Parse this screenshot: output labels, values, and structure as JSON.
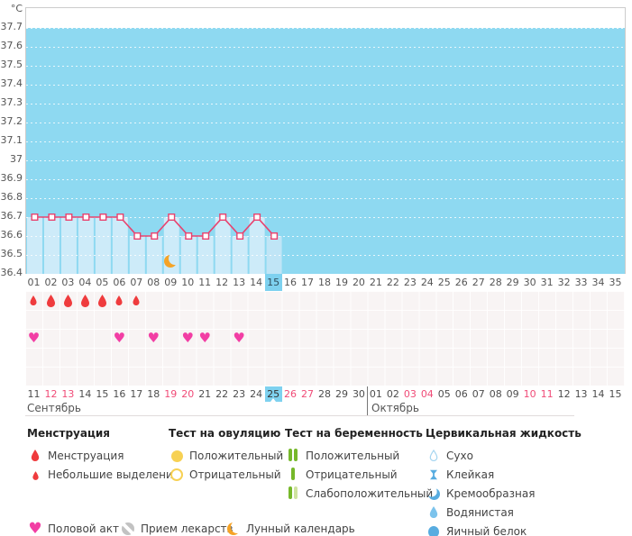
{
  "chart_data": {
    "type": "line",
    "ylabel": "°C",
    "ylim": [
      36.4,
      37.8
    ],
    "yticks": [
      "37.7",
      "37.6",
      "37.5",
      "37.4",
      "37.3",
      "37.2",
      "37.1",
      "37",
      "36.9",
      "36.8",
      "36.7",
      "36.6",
      "36.5",
      "36.4"
    ],
    "x_categories": [
      "01",
      "02",
      "03",
      "04",
      "05",
      "06",
      "07",
      "08",
      "09",
      "10",
      "11",
      "12",
      "13",
      "14",
      "15",
      "16",
      "17",
      "18",
      "19",
      "20",
      "21",
      "22",
      "23",
      "24",
      "25",
      "26",
      "27",
      "28",
      "29",
      "30",
      "31",
      "32",
      "33",
      "34",
      "35"
    ],
    "series": [
      {
        "name": "temperature",
        "values": [
          36.7,
          36.7,
          36.7,
          36.7,
          36.7,
          36.7,
          36.6,
          36.6,
          36.7,
          36.6,
          36.6,
          36.7,
          36.6,
          36.7,
          36.6,
          null,
          null,
          null,
          null,
          null,
          null,
          null,
          null,
          null,
          null,
          null,
          null,
          null,
          null,
          null,
          null,
          null,
          null,
          null,
          null
        ]
      }
    ],
    "selected_day": "15",
    "moon_day": "09",
    "grid": "white-dotted",
    "legend_position": "bottom"
  },
  "symptom_rows": {
    "menstruation": [
      {
        "day": "01",
        "size": "small"
      },
      {
        "day": "02",
        "size": "large"
      },
      {
        "day": "03",
        "size": "large"
      },
      {
        "day": "04",
        "size": "large"
      },
      {
        "day": "05",
        "size": "large"
      },
      {
        "day": "06",
        "size": "small"
      },
      {
        "day": "07",
        "size": "small"
      }
    ],
    "intercourse_days": [
      "01",
      "06",
      "08",
      "10",
      "11",
      "13"
    ]
  },
  "calendar": {
    "selected_date": "25",
    "months": [
      {
        "name": "Сентябрь",
        "days": [
          "11",
          "12",
          "13",
          "14",
          "15",
          "16",
          "17",
          "18",
          "19",
          "20",
          "21",
          "22",
          "23",
          "24",
          "25",
          "26",
          "27",
          "28",
          "29",
          "30"
        ],
        "weekend_days": [
          "12",
          "13",
          "19",
          "20",
          "26",
          "27"
        ]
      },
      {
        "name": "Октябрь",
        "days": [
          "01",
          "02",
          "03",
          "04",
          "05",
          "06",
          "07",
          "08",
          "09",
          "10",
          "11",
          "12",
          "13",
          "14",
          "15"
        ],
        "weekend_days": [
          "03",
          "04",
          "10",
          "11"
        ]
      }
    ]
  },
  "legend": {
    "sections": [
      {
        "title": "Менструация",
        "items": [
          {
            "icon": "drop-large",
            "label": "Менструация"
          },
          {
            "icon": "drop-small",
            "label": "Небольшие выделения"
          }
        ]
      },
      {
        "title": "Тест на овуляцию",
        "items": [
          {
            "icon": "circle-yellow-filled",
            "label": "Положительный"
          },
          {
            "icon": "circle-yellow-outline",
            "label": "Отрицательный"
          }
        ]
      },
      {
        "title": "Тест на беременность",
        "items": [
          {
            "icon": "test-two-bars",
            "label": "Положительный"
          },
          {
            "icon": "test-one-bar",
            "label": "Отрицательный"
          },
          {
            "icon": "test-weak-bars",
            "label": "Слабоположительный"
          }
        ]
      },
      {
        "title": "Цервикальная жидкость",
        "items": [
          {
            "icon": "cf-dry",
            "label": "Сухо"
          },
          {
            "icon": "cf-sticky",
            "label": "Клейкая"
          },
          {
            "icon": "cf-creamy",
            "label": "Кремообразная"
          },
          {
            "icon": "cf-watery",
            "label": "Водянистая"
          },
          {
            "icon": "cf-eggwhite",
            "label": "Яичный белок"
          }
        ]
      }
    ],
    "extra_items": [
      {
        "icon": "heart",
        "label": "Половой акт"
      },
      {
        "icon": "pill",
        "label": "Прием лекарств"
      },
      {
        "icon": "moon",
        "label": "Лунный календарь"
      }
    ]
  },
  "colors": {
    "plot_background": "#8ed9f1",
    "bar_fill": "#cdebf9",
    "bar_fill_selected": "#c0e5f6",
    "day_highlight": "#7ed1ef",
    "temp_line": "#e8426e",
    "weekend_date": "#f04b77",
    "menstruation_drop": "#ef3b3d",
    "heart": "#f23ea4",
    "moon": "#f5a326",
    "test_green": "#76b82a",
    "test_green_pale": "#cfe3a0",
    "ovulation_yellow": "#f7d154",
    "cf_blue": "#57ace0",
    "cf_blue_light": "#a5d5f0",
    "cf_watery": "#7cc3ec",
    "pill_grey": "#c2c2c2"
  }
}
